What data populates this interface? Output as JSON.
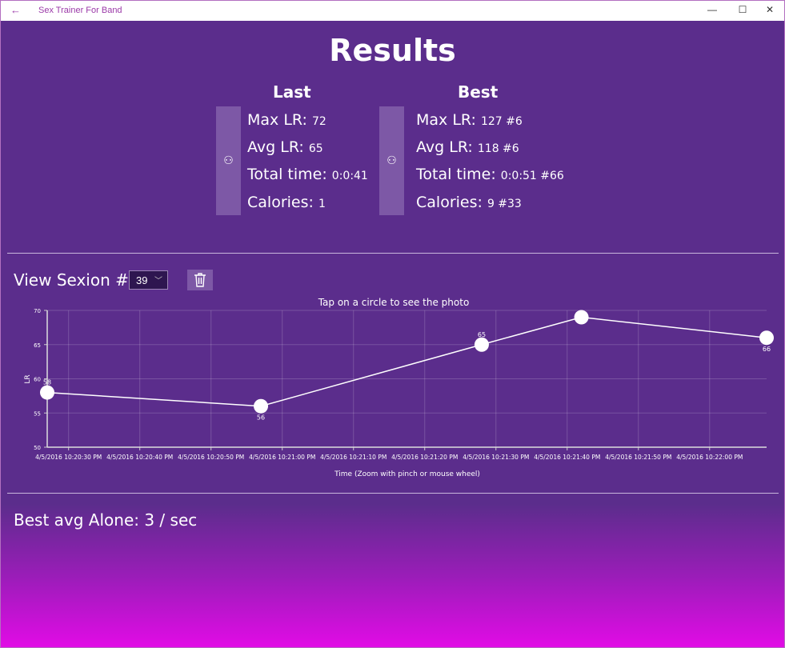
{
  "window": {
    "title": "Sex Trainer For Band",
    "back_icon": "arrow-left-icon",
    "accent": "#9b3aa8"
  },
  "header": {
    "title": "Results"
  },
  "last": {
    "heading": "Last",
    "max_lr": "Max LR: ",
    "max_lr_val": "72",
    "avg_lr": "Avg LR: ",
    "avg_lr_val": "65",
    "total_time": "Total time: ",
    "total_time_val": "0:0:41",
    "calories": "Calories: ",
    "calories_val": "1"
  },
  "best": {
    "heading": "Best",
    "max_lr": "Max LR: ",
    "max_lr_val": "127 #6",
    "avg_lr": "Avg LR: ",
    "avg_lr_val": "118 #6",
    "total_time": "Total time: ",
    "total_time_val": "0:0:51 #66",
    "calories": "Calories: ",
    "calories_val": "9 #33"
  },
  "session": {
    "label": "View Sexion #:",
    "selected": "39"
  },
  "best_alone": "Best avg Alone: 3 / sec",
  "chart_data": {
    "type": "line",
    "title": "Tap on a circle to see the photo",
    "xlabel": "Time (Zoom with pinch or mouse wheel)",
    "ylabel": "LR",
    "ylim": [
      50,
      70
    ],
    "yticks": [
      "50",
      "55",
      "60",
      "65",
      "70"
    ],
    "xlim": [
      "10:20:27 PM",
      "10:22:08 PM"
    ],
    "xticks": [
      "4/5/2016 10:20:30 PM",
      "4/5/2016 10:20:40 PM",
      "4/5/2016 10:20:50 PM",
      "4/5/2016 10:21:00 PM",
      "4/5/2016 10:21:10 PM",
      "4/5/2016 10:21:20 PM",
      "4/5/2016 10:21:30 PM",
      "4/5/2016 10:21:40 PM",
      "4/5/2016 10:21:50 PM",
      "4/5/2016 10:22:00 PM"
    ],
    "x": [
      "10:20:27 PM",
      "10:20:57 PM",
      "10:21:28 PM",
      "10:21:42 PM",
      "10:22:08 PM"
    ],
    "values": [
      58,
      56,
      65,
      69,
      66
    ],
    "labels": [
      "58",
      "56",
      "65",
      "",
      "66"
    ],
    "grid": true
  }
}
